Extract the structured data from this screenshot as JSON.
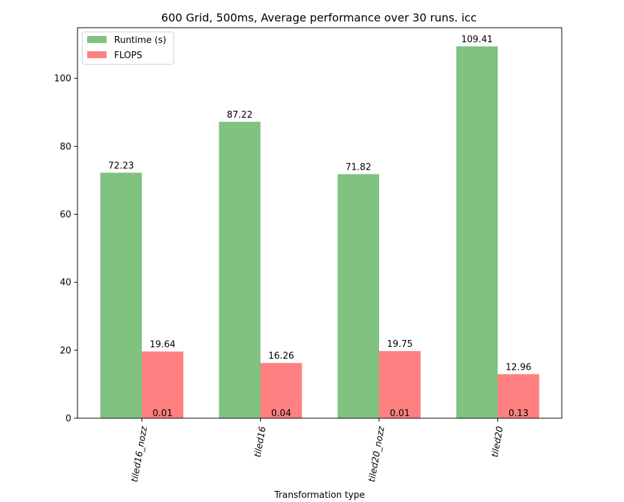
{
  "chart_data": {
    "type": "bar",
    "title": "600 Grid, 500ms, Average performance over 30 runs. icc",
    "xlabel": "Transformation type",
    "ylabel": "",
    "categories": [
      "tiled16_nozz",
      "tiled16",
      "tiled20_nozz",
      "tiled20"
    ],
    "series": [
      {
        "name": "Runtime (s)",
        "color": "#80c280",
        "values": [
          72.23,
          87.22,
          71.82,
          109.41
        ]
      },
      {
        "name": "FLOPS",
        "color": "#ff8080",
        "values": [
          19.64,
          16.26,
          19.75,
          12.96
        ]
      }
    ],
    "annotations": [
      0.01,
      0.04,
      0.01,
      0.13
    ],
    "ylim": [
      0,
      114.9
    ],
    "yticks": [
      0,
      20,
      40,
      60,
      80,
      100
    ],
    "grid": false,
    "legend_position": "top-left",
    "xtick_rotation": 80
  }
}
